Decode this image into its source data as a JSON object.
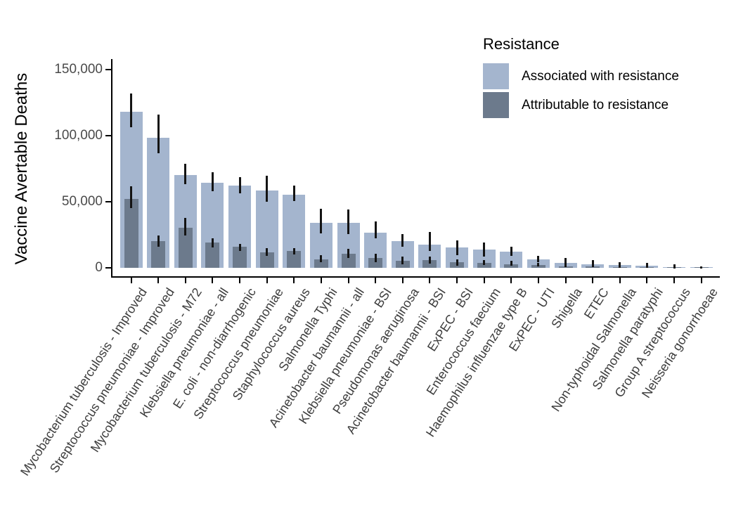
{
  "legend": {
    "title": "Resistance",
    "items": [
      {
        "key": "associated",
        "label": "Associated with resistance",
        "color": "#a4b5ce"
      },
      {
        "key": "attributable",
        "label": "Attributable to resistance",
        "color": "#6c7a8c"
      }
    ]
  },
  "axes": {
    "y_title": "Vaccine Avertable Deaths",
    "y_ticks": [
      {
        "value": 0,
        "label": "0"
      },
      {
        "value": 50000,
        "label": "50,000"
      },
      {
        "value": 100000,
        "label": "100,000"
      },
      {
        "value": 150000,
        "label": "150,000"
      }
    ]
  },
  "chart_data": {
    "type": "bar",
    "title": "",
    "xlabel": "",
    "ylabel": "Vaccine Avertable Deaths",
    "ylim": [
      0,
      150000
    ],
    "grid": false,
    "legend_position": "top-right",
    "error_bars": true,
    "categories": [
      "Mycobacterium tuberculosis - Improved",
      "Streptococcus pneumoniae - Improved",
      "Mycobacterium tuberculosis - M72",
      "Klebsiella pneumoniae - all",
      "E. coli - non-diarrhogenic",
      "Streptococcus pneumoniae",
      "Staphylococcus aureus",
      "Salmonella Typhi",
      "Acinetobacter baumannii - all",
      "Klebsiella pneumoniae - BSI",
      "Pseudomonas aeruginosa",
      "Acinetobacter baumannii - BSI",
      "ExPEC - BSI",
      "Enterococcus faecium",
      "Haemophilus influenzae type B",
      "ExPEC - UTI",
      "Shigella",
      "ETEC",
      "Non-typhoidal Salmonella",
      "Salmonella paratyphi",
      "Group A streptococcus",
      "Neisseria gonorrhoeae"
    ],
    "series": [
      {
        "name": "Associated with resistance",
        "color": "#a4b5ce",
        "values": [
          118000,
          98500,
          70000,
          64500,
          62000,
          58500,
          55500,
          34000,
          34000,
          26600,
          20400,
          17700,
          15300,
          13800,
          12400,
          6300,
          3900,
          2700,
          1900,
          1400,
          700,
          300
        ],
        "ci_low": [
          106600,
          86500,
          63500,
          58000,
          56500,
          50000,
          50500,
          26200,
          25700,
          22200,
          16100,
          12900,
          9700,
          8500,
          9000,
          4100,
          1900,
          1200,
          800,
          600,
          300,
          100
        ],
        "ci_high": [
          131800,
          115800,
          78600,
          72500,
          68500,
          69500,
          62500,
          44900,
          44000,
          35100,
          25700,
          27100,
          20900,
          19100,
          16100,
          9000,
          7400,
          5600,
          4200,
          3600,
          2600,
          1200
        ]
      },
      {
        "name": "Attributable to resistance",
        "color": "#6c7a8c",
        "values": [
          52000,
          20000,
          30500,
          19000,
          16000,
          11500,
          13000,
          6200,
          10600,
          7600,
          5300,
          5900,
          4100,
          3700,
          2700,
          2300,
          1200,
          1000,
          700,
          500,
          250,
          100
        ],
        "ci_low": [
          45000,
          16000,
          24500,
          15500,
          13000,
          9000,
          10300,
          4100,
          7300,
          4400,
          2700,
          3200,
          1800,
          2100,
          1600,
          1100,
          500,
          400,
          250,
          200,
          100,
          0
        ],
        "ci_high": [
          61500,
          24500,
          38000,
          22500,
          18200,
          14700,
          15100,
          9400,
          14400,
          10800,
          8500,
          8500,
          6400,
          5900,
          5300,
          3700,
          2400,
          1900,
          1400,
          900,
          500,
          300
        ]
      }
    ]
  }
}
